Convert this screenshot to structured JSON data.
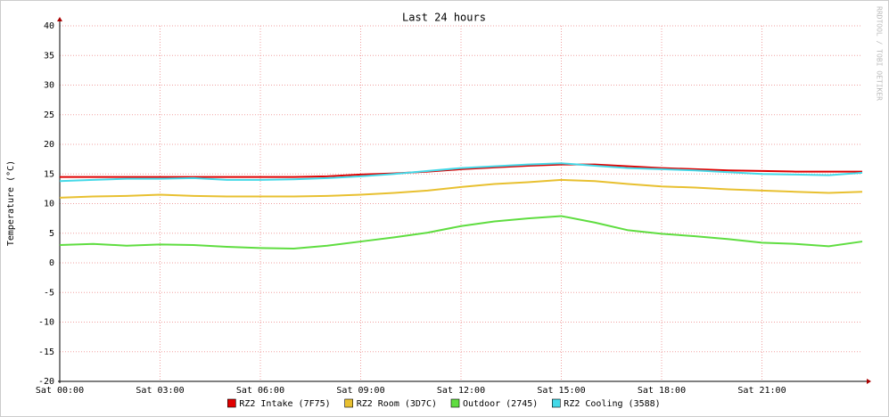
{
  "chart_data": {
    "type": "line",
    "title": "Last 24 hours",
    "y_label": "Temperature (°C)",
    "watermark": "RRDTOOL / TOBI OETIKER",
    "xlim": [
      0,
      24
    ],
    "xticks": [
      {
        "value": 0,
        "label": "Sat 00:00"
      },
      {
        "value": 3,
        "label": "Sat 03:00"
      },
      {
        "value": 6,
        "label": "Sat 06:00"
      },
      {
        "value": 9,
        "label": "Sat 09:00"
      },
      {
        "value": 12,
        "label": "Sat 12:00"
      },
      {
        "value": 15,
        "label": "Sat 15:00"
      },
      {
        "value": 18,
        "label": "Sat 18:00"
      },
      {
        "value": 21,
        "label": "Sat 21:00"
      }
    ],
    "ylim": [
      -20,
      40
    ],
    "yticks": [
      -20,
      -15,
      -10,
      -5,
      0,
      5,
      10,
      15,
      20,
      25,
      30,
      35,
      40
    ],
    "grid": true,
    "legend": "bottom",
    "x": [
      0,
      1,
      2,
      3,
      4,
      5,
      6,
      7,
      8,
      9,
      10,
      11,
      12,
      13,
      14,
      15,
      16,
      17,
      18,
      19,
      20,
      21,
      22,
      23,
      24
    ],
    "series": [
      {
        "name": "RZ2 Intake (7F75)",
        "color": "#e00000",
        "values": [
          14.5,
          14.5,
          14.5,
          14.5,
          14.5,
          14.5,
          14.5,
          14.5,
          14.6,
          14.9,
          15.1,
          15.4,
          15.8,
          16.1,
          16.4,
          16.6,
          16.6,
          16.3,
          16.0,
          15.8,
          15.6,
          15.5,
          15.4,
          15.4,
          15.4
        ]
      },
      {
        "name": "RZ2 Room (3D7C)",
        "color": "#e8c030",
        "values": [
          11.0,
          11.2,
          11.3,
          11.5,
          11.3,
          11.2,
          11.2,
          11.2,
          11.3,
          11.5,
          11.8,
          12.2,
          12.8,
          13.3,
          13.6,
          14.0,
          13.8,
          13.3,
          12.9,
          12.7,
          12.4,
          12.2,
          12.0,
          11.8,
          12.0
        ]
      },
      {
        "name": "Outdoor (2745)",
        "color": "#5fdd40",
        "values": [
          3.0,
          3.2,
          2.9,
          3.1,
          3.0,
          2.7,
          2.5,
          2.4,
          2.9,
          3.6,
          4.3,
          5.1,
          6.2,
          7.0,
          7.5,
          7.9,
          6.8,
          5.5,
          4.9,
          4.5,
          4.0,
          3.4,
          3.2,
          2.8,
          3.6
        ]
      },
      {
        "name": "RZ2 Cooling (3588)",
        "color": "#44d9e8",
        "values": [
          13.8,
          14.0,
          14.2,
          14.2,
          14.3,
          14.0,
          14.0,
          14.1,
          14.3,
          14.6,
          15.0,
          15.5,
          16.0,
          16.3,
          16.6,
          16.8,
          16.4,
          16.0,
          15.8,
          15.6,
          15.3,
          15.0,
          14.9,
          14.8,
          15.2
        ]
      }
    ]
  }
}
